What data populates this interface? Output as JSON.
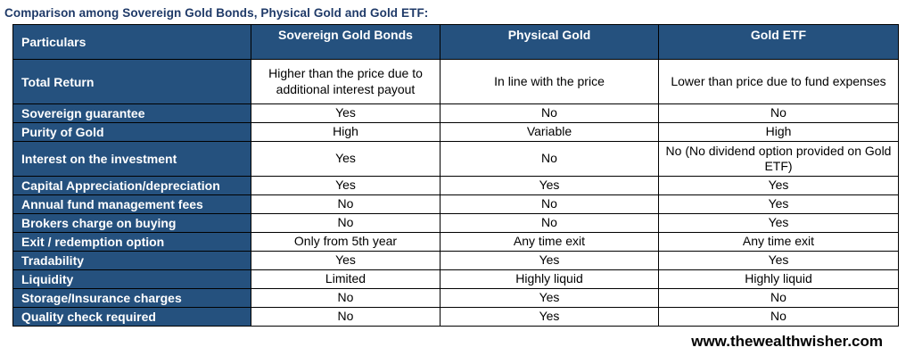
{
  "title": "Comparison among Sovereign Gold Bonds, Physical Gold and Gold ETF:",
  "table": {
    "headers": [
      "Particulars",
      "Sovereign Gold Bonds",
      "Physical Gold",
      "Gold ETF"
    ],
    "rows": [
      {
        "label": "Total Return",
        "values": [
          "Higher than the price due to additional interest payout",
          "In line with the price",
          "Lower than price due to fund expenses"
        ]
      },
      {
        "label": "Sovereign guarantee",
        "values": [
          "Yes",
          "No",
          "No"
        ]
      },
      {
        "label": "Purity of Gold",
        "values": [
          "High",
          "Variable",
          "High"
        ]
      },
      {
        "label": "Interest on the investment",
        "values": [
          "Yes",
          "No",
          "No (No dividend option provided on Gold ETF)"
        ]
      },
      {
        "label": "Capital Appreciation/depreciation",
        "values": [
          "Yes",
          "Yes",
          "Yes"
        ]
      },
      {
        "label": "Annual fund management fees",
        "values": [
          "No",
          "No",
          "Yes"
        ]
      },
      {
        "label": "Brokers charge on buying",
        "values": [
          "No",
          "No",
          "Yes"
        ]
      },
      {
        "label": "Exit / redemption option",
        "values": [
          "Only from 5th year",
          "Any time exit",
          "Any time exit"
        ]
      },
      {
        "label": "Tradability",
        "values": [
          "Yes",
          "Yes",
          "Yes"
        ]
      },
      {
        "label": "Liquidity",
        "values": [
          "Limited",
          "Highly liquid",
          "Highly liquid"
        ]
      },
      {
        "label": "Storage/Insurance charges",
        "values": [
          "No",
          "Yes",
          "No"
        ]
      },
      {
        "label": "Quality check required",
        "values": [
          "No",
          "Yes",
          "No"
        ]
      }
    ]
  },
  "footer": {
    "website": "www.thewealthwisher.com"
  },
  "colors": {
    "header_bg": "#25517e",
    "header_text": "#ffffff",
    "title_text": "#1f3a68",
    "border": "#000000",
    "cell_text": "#000000"
  }
}
